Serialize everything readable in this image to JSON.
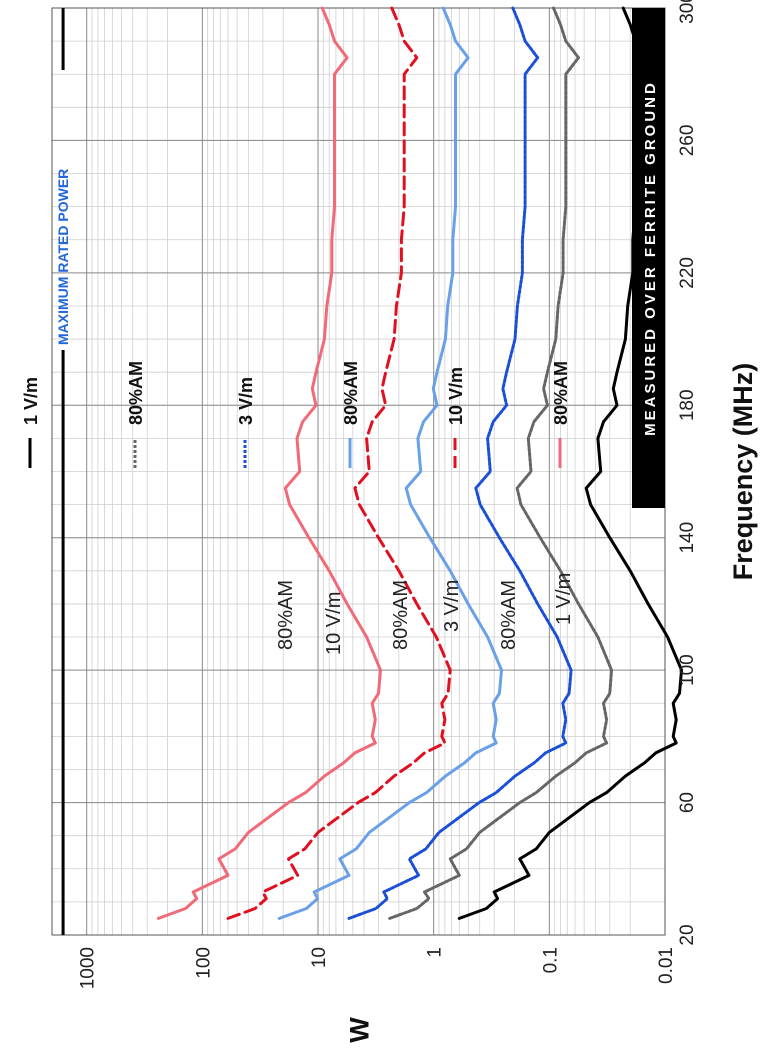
{
  "chart_data": {
    "type": "line",
    "xlabel": "Frequency (MHz)",
    "ylabel": "W",
    "xlim": [
      20,
      300
    ],
    "ylim": [
      0.01,
      2000
    ],
    "yscale": "log",
    "xticks": [
      20,
      60,
      100,
      140,
      180,
      220,
      260,
      300
    ],
    "yticks": [
      {
        "value": 0.01,
        "label": "0.01"
      },
      {
        "value": 0.1,
        "label": "0.1"
      },
      {
        "value": 1,
        "label": "1"
      },
      {
        "value": 10,
        "label": "10"
      },
      {
        "value": 100,
        "label": "100"
      },
      {
        "value": 1000,
        "label": "1000"
      }
    ],
    "grid": true,
    "legend_position": "top",
    "annotations": {
      "banner": "MEASURED OVER FERRITE GROUND",
      "max_power_label": "MAXIMUM RATED POWER",
      "max_power_value": 1600
    },
    "series": [
      {
        "name": "1 V/m",
        "color": "#000000",
        "dash": "solid",
        "label_text": "1 V/m",
        "x": [
          25,
          28,
          31,
          33,
          38,
          43,
          46,
          51,
          55,
          60,
          63,
          68,
          72,
          75,
          78,
          80,
          85,
          90,
          93,
          100,
          110,
          120,
          130,
          140,
          150,
          155,
          160,
          170,
          175,
          180,
          185,
          190,
          200,
          210,
          220,
          230,
          240,
          260,
          270,
          280,
          285,
          290,
          295,
          300
        ],
        "y": [
          0.6,
          0.35,
          0.28,
          0.3,
          0.15,
          0.18,
          0.13,
          0.1,
          0.07,
          0.045,
          0.032,
          0.022,
          0.015,
          0.012,
          0.008,
          0.0085,
          0.008,
          0.0085,
          0.0075,
          0.0072,
          0.0095,
          0.014,
          0.02,
          0.03,
          0.044,
          0.048,
          0.036,
          0.038,
          0.034,
          0.026,
          0.028,
          0.026,
          0.022,
          0.021,
          0.019,
          0.019,
          0.018,
          0.018,
          0.018,
          0.018,
          0.014,
          0.018,
          0.02,
          0.023
        ]
      },
      {
        "name": "80%AM",
        "color": "#666666",
        "dash": "3,2",
        "label_text": "80%AM",
        "x": [
          25,
          28,
          31,
          33,
          38,
          43,
          46,
          51,
          55,
          60,
          63,
          68,
          72,
          75,
          78,
          80,
          85,
          90,
          93,
          100,
          110,
          120,
          130,
          140,
          150,
          155,
          160,
          170,
          175,
          180,
          185,
          190,
          200,
          210,
          220,
          230,
          240,
          260,
          270,
          280,
          285,
          290,
          295,
          300
        ],
        "y": [
          2.4,
          1.4,
          1.1,
          1.2,
          0.6,
          0.72,
          0.52,
          0.4,
          0.28,
          0.18,
          0.13,
          0.088,
          0.06,
          0.048,
          0.032,
          0.034,
          0.032,
          0.034,
          0.03,
          0.029,
          0.038,
          0.056,
          0.08,
          0.12,
          0.176,
          0.19,
          0.144,
          0.152,
          0.136,
          0.104,
          0.112,
          0.104,
          0.088,
          0.084,
          0.076,
          0.076,
          0.072,
          0.072,
          0.072,
          0.072,
          0.056,
          0.072,
          0.08,
          0.092
        ]
      },
      {
        "name": "3 V/m",
        "color": "#1a4fd6",
        "dash": "3,2",
        "label_text": "3 V/m",
        "x": [
          25,
          28,
          31,
          33,
          38,
          43,
          46,
          51,
          55,
          60,
          63,
          68,
          72,
          75,
          78,
          80,
          85,
          90,
          93,
          100,
          110,
          120,
          130,
          140,
          150,
          155,
          160,
          170,
          175,
          180,
          185,
          190,
          200,
          210,
          220,
          230,
          240,
          260,
          270,
          280,
          285,
          290,
          295,
          300
        ],
        "y": [
          5.4,
          3.15,
          2.52,
          2.7,
          1.35,
          1.62,
          1.17,
          0.9,
          0.63,
          0.405,
          0.288,
          0.198,
          0.135,
          0.108,
          0.072,
          0.0765,
          0.072,
          0.0765,
          0.0675,
          0.0648,
          0.0855,
          0.126,
          0.18,
          0.27,
          0.396,
          0.432,
          0.324,
          0.342,
          0.306,
          0.234,
          0.252,
          0.234,
          0.198,
          0.189,
          0.171,
          0.171,
          0.162,
          0.162,
          0.162,
          0.162,
          0.126,
          0.162,
          0.18,
          0.207
        ]
      },
      {
        "name": "80%AM",
        "color": "#6aa0e8",
        "dash": "solid",
        "label_text": "80%AM",
        "x": [
          25,
          28,
          31,
          33,
          38,
          43,
          46,
          51,
          55,
          60,
          63,
          68,
          72,
          75,
          78,
          80,
          85,
          90,
          93,
          100,
          110,
          120,
          130,
          140,
          150,
          155,
          160,
          170,
          175,
          180,
          185,
          190,
          200,
          210,
          220,
          230,
          240,
          260,
          270,
          280,
          285,
          290,
          295,
          300
        ],
        "y": [
          21.6,
          12.6,
          10.08,
          10.8,
          5.4,
          6.48,
          4.68,
          3.6,
          2.52,
          1.62,
          1.152,
          0.792,
          0.54,
          0.432,
          0.288,
          0.306,
          0.288,
          0.306,
          0.27,
          0.2592,
          0.342,
          0.504,
          0.72,
          1.08,
          1.584,
          1.728,
          1.296,
          1.368,
          1.224,
          0.936,
          1.008,
          0.936,
          0.792,
          0.756,
          0.684,
          0.684,
          0.648,
          0.648,
          0.648,
          0.648,
          0.504,
          0.648,
          0.72,
          0.828
        ]
      },
      {
        "name": "10 V/m",
        "color": "#e01020",
        "dash": "12,6",
        "label_text": "10 V/m",
        "x": [
          25,
          28,
          31,
          33,
          38,
          43,
          46,
          51,
          55,
          60,
          63,
          68,
          72,
          75,
          78,
          80,
          85,
          90,
          93,
          100,
          110,
          120,
          130,
          140,
          150,
          155,
          160,
          170,
          175,
          180,
          185,
          190,
          200,
          210,
          220,
          230,
          240,
          260,
          270,
          280,
          285,
          290,
          295,
          300
        ],
        "y": [
          60,
          35,
          28,
          30,
          15,
          18,
          13,
          10,
          7,
          4.5,
          3.2,
          2.2,
          1.5,
          1.2,
          0.8,
          0.85,
          0.8,
          0.85,
          0.75,
          0.72,
          0.95,
          1.4,
          2,
          3,
          4.4,
          4.8,
          3.6,
          3.8,
          3.4,
          2.6,
          2.8,
          2.6,
          2.2,
          2.1,
          1.9,
          1.9,
          1.8,
          1.8,
          1.8,
          1.8,
          1.4,
          1.8,
          2,
          2.3
        ]
      },
      {
        "name": "80%AM",
        "color": "#f06a78",
        "dash": "solid",
        "label_text": "80%AM",
        "x": [
          25,
          28,
          31,
          33,
          38,
          43,
          46,
          51,
          55,
          60,
          63,
          68,
          72,
          75,
          78,
          80,
          85,
          90,
          93,
          100,
          110,
          120,
          130,
          140,
          150,
          155,
          160,
          170,
          175,
          180,
          185,
          190,
          200,
          210,
          220,
          230,
          240,
          260,
          270,
          280,
          285,
          290,
          295,
          300
        ],
        "y": [
          240,
          140,
          112,
          120,
          60,
          72,
          52,
          40,
          28,
          18,
          12.8,
          8.8,
          6,
          4.8,
          3.2,
          3.4,
          3.2,
          3.4,
          3,
          2.88,
          3.8,
          5.6,
          8,
          12,
          17.6,
          19.2,
          14.4,
          15.2,
          13.6,
          10.4,
          11.2,
          10.4,
          8.8,
          8.4,
          7.6,
          7.6,
          7.2,
          7.2,
          7.2,
          7.2,
          5.6,
          7.2,
          8,
          9.2
        ]
      }
    ]
  }
}
